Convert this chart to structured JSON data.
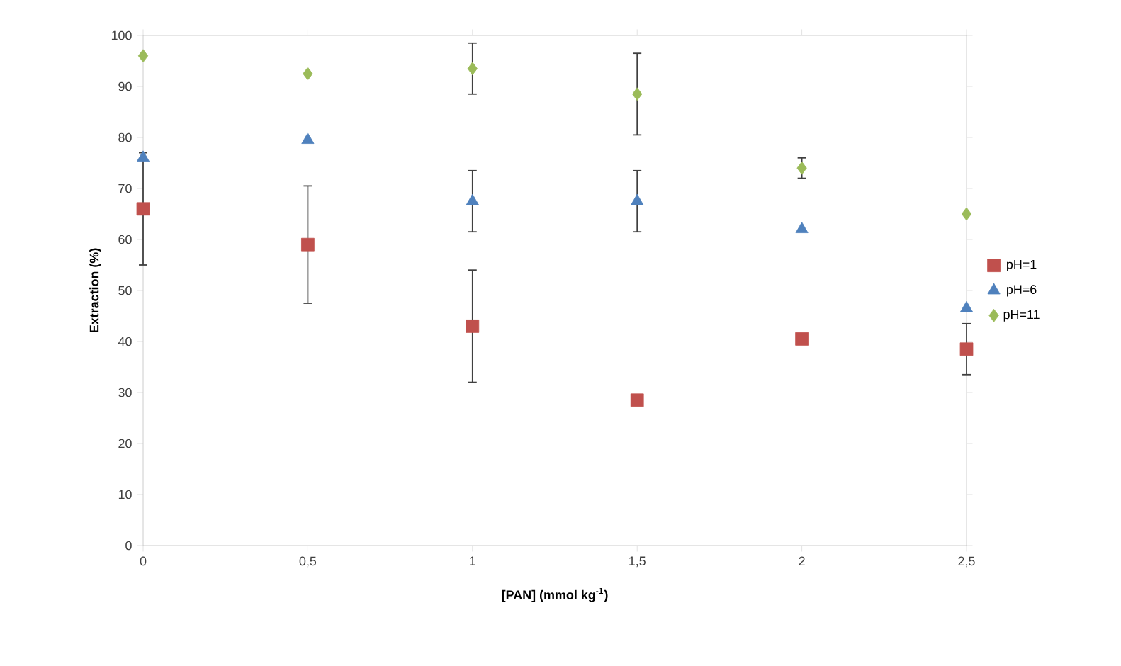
{
  "chart_data": {
    "type": "scatter",
    "xlabel": "[PAN] (mmol kg$^{-1}$)",
    "ylabel": "Extraction (%)",
    "x": [
      0,
      0.5,
      1,
      1.5,
      2,
      2.5
    ],
    "xlim": [
      0,
      2.5
    ],
    "ylim": [
      0,
      100
    ],
    "xticks": [
      0,
      {
        "value": 0.5,
        "label": "0,5"
      },
      1,
      {
        "value": 1.5,
        "label": "1,5"
      },
      2,
      {
        "value": 2.5,
        "label": "2,5"
      }
    ],
    "yticks": [
      0,
      10,
      20,
      30,
      40,
      50,
      60,
      70,
      80,
      90,
      100
    ],
    "grid": false,
    "legend": "right",
    "series": [
      {
        "name": "pH=1",
        "color": "#c0504d",
        "marker": "square",
        "values": [
          66,
          59,
          43,
          28.5,
          40.5,
          38.5
        ],
        "errors": [
          11,
          11.5,
          11,
          null,
          null,
          5
        ]
      },
      {
        "name": "pH=6",
        "color": "#4f81bd",
        "marker": "triangle",
        "values": [
          76,
          79.5,
          67.5,
          67.5,
          62,
          46.5
        ],
        "errors": [
          null,
          null,
          6,
          6,
          null,
          null
        ]
      },
      {
        "name": "pH=11",
        "color": "#9bbb59",
        "marker": "diamond",
        "values": [
          96,
          92.5,
          93.5,
          88.5,
          74,
          65
        ],
        "errors": [
          null,
          null,
          5,
          8,
          2,
          null
        ]
      }
    ]
  }
}
